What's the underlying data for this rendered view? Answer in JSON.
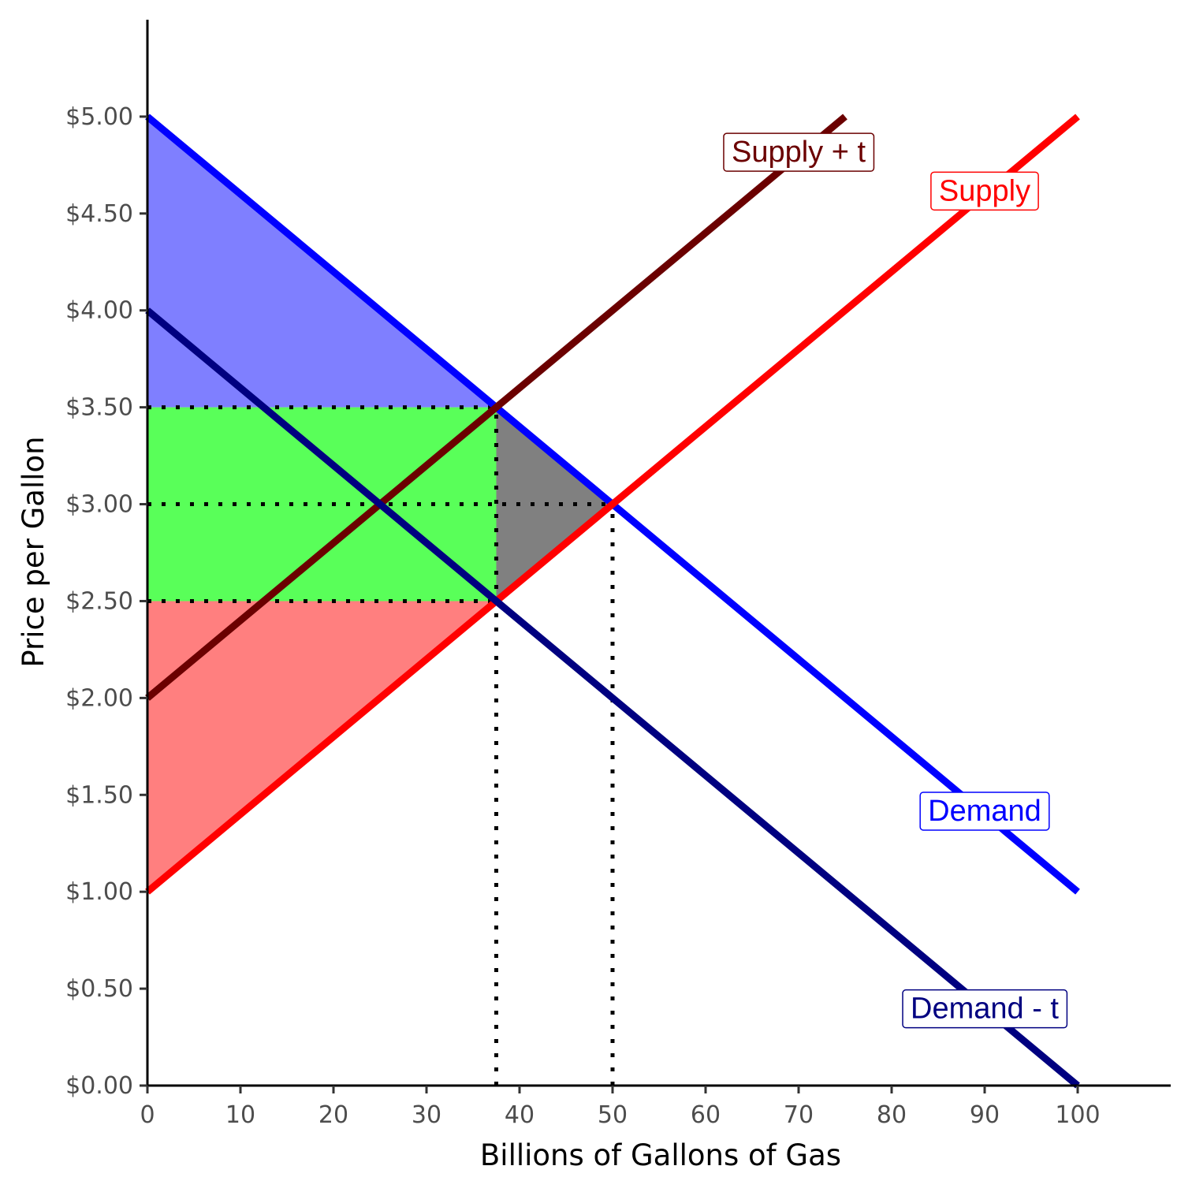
{
  "chart_data": {
    "type": "line",
    "xlabel": "Billions of Gallons of Gas",
    "ylabel": "Price per Gallon",
    "xlim": [
      0,
      110
    ],
    "ylim": [
      0,
      5.5
    ],
    "x_ticks": [
      0,
      10,
      20,
      30,
      40,
      50,
      60,
      70,
      80,
      90,
      100
    ],
    "x_tick_labels": [
      "0",
      "10",
      "20",
      "30",
      "40",
      "50",
      "60",
      "70",
      "80",
      "90",
      "100"
    ],
    "y_ticks": [
      0,
      0.5,
      1,
      1.5,
      2,
      2.5,
      3,
      3.5,
      4,
      4.5,
      5
    ],
    "y_tick_labels": [
      "$0.00",
      "$0.50",
      "$1.00",
      "$1.50",
      "$2.00",
      "$2.50",
      "$3.00",
      "$3.50",
      "$4.00",
      "$4.50",
      "$5.00"
    ],
    "grid": false,
    "series": [
      {
        "name": "Demand",
        "color": "#0000ff",
        "x": [
          0,
          100
        ],
        "y": [
          5,
          1
        ],
        "label_at": [
          90,
          1.42
        ]
      },
      {
        "name": "Supply",
        "color": "#ff0000",
        "x": [
          0,
          100
        ],
        "y": [
          1,
          5
        ],
        "label_at": [
          90,
          4.62
        ]
      },
      {
        "name": "Supply + t",
        "color": "#6b0000",
        "x": [
          0,
          75
        ],
        "y": [
          2,
          5
        ],
        "label_at": [
          70,
          4.82
        ]
      },
      {
        "name": "Demand - t",
        "color": "#000080",
        "x": [
          0,
          100
        ],
        "y": [
          4,
          0
        ],
        "label_at": [
          90,
          0.4
        ]
      }
    ],
    "shaded_regions": [
      {
        "name": "consumer-surplus",
        "color": "#0000ff",
        "opacity": 0.5,
        "points": [
          [
            0,
            5
          ],
          [
            37.5,
            3.5
          ],
          [
            0,
            3.5
          ]
        ]
      },
      {
        "name": "tax-revenue",
        "color": "#00ff00",
        "opacity": 0.65,
        "points": [
          [
            0,
            3.5
          ],
          [
            37.5,
            3.5
          ],
          [
            37.5,
            2.5
          ],
          [
            0,
            2.5
          ]
        ]
      },
      {
        "name": "producer-surplus",
        "color": "#ff0000",
        "opacity": 0.5,
        "points": [
          [
            0,
            2.5
          ],
          [
            37.5,
            2.5
          ],
          [
            0,
            1
          ]
        ]
      },
      {
        "name": "deadweight-loss",
        "color": "#808080",
        "opacity": 1,
        "points": [
          [
            37.5,
            3.5
          ],
          [
            50,
            3
          ],
          [
            37.5,
            2.5
          ]
        ]
      }
    ],
    "reference_lines": [
      {
        "name": "price-3-50",
        "from": [
          0,
          3.5
        ],
        "to": [
          37.5,
          3.5
        ]
      },
      {
        "name": "price-3-00",
        "from": [
          0,
          3
        ],
        "to": [
          50,
          3
        ]
      },
      {
        "name": "price-2-50",
        "from": [
          0,
          2.5
        ],
        "to": [
          37.5,
          2.5
        ]
      },
      {
        "name": "quantity-37-5",
        "from": [
          37.5,
          0
        ],
        "to": [
          37.5,
          3.5
        ]
      },
      {
        "name": "quantity-50",
        "from": [
          50,
          0
        ],
        "to": [
          50,
          3
        ]
      }
    ]
  }
}
